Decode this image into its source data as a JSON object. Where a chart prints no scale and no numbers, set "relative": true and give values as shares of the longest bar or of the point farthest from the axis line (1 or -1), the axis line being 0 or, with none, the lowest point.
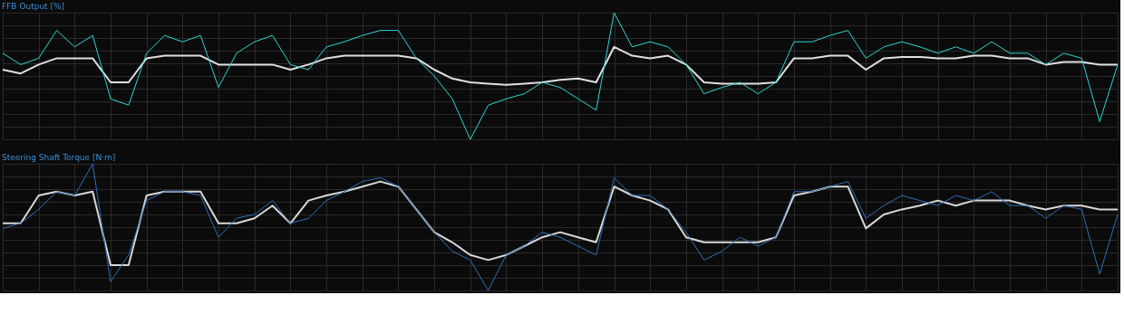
{
  "chart_data": [
    {
      "type": "line",
      "title": "FFB Output [%]",
      "relative": true,
      "grid": true,
      "tick_labels": false,
      "line_style": "solid",
      "marker": "none",
      "categories": [
        null,
        null,
        null,
        null,
        null,
        null,
        null,
        null,
        null,
        null,
        null,
        null,
        null,
        null,
        null,
        null,
        null,
        null,
        null,
        null,
        null,
        null,
        null,
        null,
        null,
        null,
        null,
        null,
        null,
        null,
        null,
        null,
        null,
        null,
        null,
        null,
        null,
        null,
        null,
        null,
        null,
        null,
        null,
        null,
        null,
        null,
        null,
        null,
        null,
        null,
        null,
        null,
        null,
        null,
        null,
        null,
        null,
        null,
        null,
        null,
        null,
        null,
        null
      ],
      "series": [
        {
          "color": "#e0e0e0",
          "values": [
            0.55,
            0.52,
            0.59,
            0.64,
            0.64,
            0.64,
            0.45,
            0.45,
            0.64,
            0.66,
            0.66,
            0.66,
            0.59,
            0.59,
            0.59,
            0.59,
            0.55,
            0.59,
            0.64,
            0.66,
            0.66,
            0.66,
            0.66,
            0.64,
            0.55,
            0.48,
            0.45,
            0.44,
            0.43,
            0.44,
            0.45,
            0.47,
            0.48,
            0.45,
            0.73,
            0.66,
            0.64,
            0.66,
            0.59,
            0.45,
            0.44,
            0.44,
            0.44,
            0.45,
            0.64,
            0.64,
            0.66,
            0.66,
            0.55,
            0.64,
            0.65,
            0.65,
            0.64,
            0.64,
            0.66,
            0.66,
            0.64,
            0.64,
            0.59,
            0.61,
            0.61,
            0.59,
            0.59
          ]
        },
        {
          "color": "#2ed6d6",
          "values": [
            0.68,
            0.59,
            0.64,
            0.86,
            0.73,
            0.82,
            0.32,
            0.27,
            0.68,
            0.82,
            0.77,
            0.82,
            0.41,
            0.68,
            0.77,
            0.82,
            0.59,
            0.55,
            0.73,
            0.77,
            0.82,
            0.86,
            0.86,
            0.64,
            0.5,
            0.32,
            0.0,
            0.27,
            0.32,
            0.36,
            0.45,
            0.41,
            0.32,
            0.23,
            1.0,
            0.73,
            0.77,
            0.73,
            0.59,
            0.36,
            0.41,
            0.45,
            0.36,
            0.45,
            0.77,
            0.77,
            0.82,
            0.86,
            0.64,
            0.73,
            0.77,
            0.73,
            0.68,
            0.73,
            0.68,
            0.77,
            0.68,
            0.68,
            0.59,
            0.68,
            0.64,
            0.14,
            0.59
          ]
        }
      ]
    },
    {
      "type": "line",
      "title": "Steering Shaft Torque [N·m]",
      "relative": true,
      "grid": true,
      "tick_labels": false,
      "line_style": "solid",
      "marker": "none",
      "categories": [
        null,
        null,
        null,
        null,
        null,
        null,
        null,
        null,
        null,
        null,
        null,
        null,
        null,
        null,
        null,
        null,
        null,
        null,
        null,
        null,
        null,
        null,
        null,
        null,
        null,
        null,
        null,
        null,
        null,
        null,
        null,
        null,
        null,
        null,
        null,
        null,
        null,
        null,
        null,
        null,
        null,
        null,
        null,
        null,
        null,
        null,
        null,
        null,
        null,
        null,
        null,
        null,
        null,
        null,
        null,
        null,
        null,
        null,
        null,
        null,
        null,
        null,
        null
      ],
      "series": [
        {
          "color": "#d8d8d8",
          "values": [
            0.53,
            0.53,
            0.75,
            0.78,
            0.75,
            0.78,
            0.2,
            0.2,
            0.75,
            0.78,
            0.78,
            0.78,
            0.53,
            0.53,
            0.57,
            0.67,
            0.53,
            0.71,
            0.75,
            0.78,
            0.82,
            0.86,
            0.82,
            0.64,
            0.46,
            0.38,
            0.28,
            0.24,
            0.28,
            0.35,
            0.42,
            0.46,
            0.42,
            0.38,
            0.82,
            0.75,
            0.71,
            0.64,
            0.42,
            0.38,
            0.38,
            0.38,
            0.38,
            0.42,
            0.75,
            0.78,
            0.82,
            0.82,
            0.49,
            0.6,
            0.64,
            0.67,
            0.71,
            0.67,
            0.71,
            0.71,
            0.71,
            0.67,
            0.64,
            0.67,
            0.67,
            0.64,
            0.64
          ]
        },
        {
          "color": "#2f6fb8",
          "values": [
            0.49,
            0.53,
            0.64,
            0.78,
            0.75,
            1.0,
            0.07,
            0.28,
            0.71,
            0.78,
            0.78,
            0.75,
            0.42,
            0.57,
            0.6,
            0.71,
            0.53,
            0.57,
            0.71,
            0.78,
            0.86,
            0.89,
            0.82,
            0.64,
            0.46,
            0.31,
            0.24,
            0.0,
            0.28,
            0.35,
            0.46,
            0.42,
            0.35,
            0.28,
            0.89,
            0.75,
            0.75,
            0.64,
            0.46,
            0.24,
            0.31,
            0.42,
            0.35,
            0.42,
            0.78,
            0.78,
            0.82,
            0.86,
            0.57,
            0.67,
            0.75,
            0.71,
            0.67,
            0.75,
            0.71,
            0.78,
            0.67,
            0.67,
            0.57,
            0.67,
            0.64,
            0.13,
            0.6
          ]
        }
      ]
    }
  ]
}
